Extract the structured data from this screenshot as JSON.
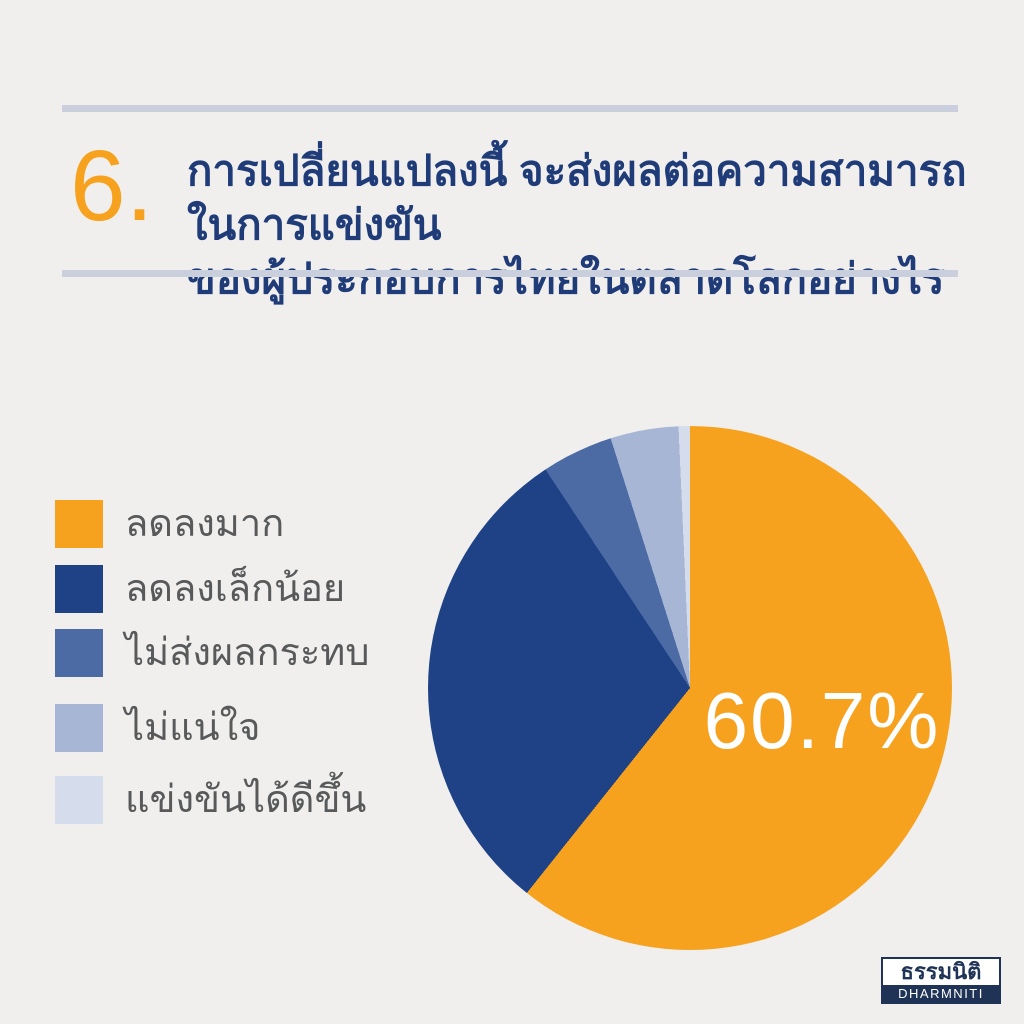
{
  "page": {
    "background_color": "#F0EFED",
    "accent_orange": "#F6A21E",
    "heading_navy": "#1F3C78",
    "divider_color": "#C9CFDC",
    "legend_text_color": "#58595B"
  },
  "header": {
    "number": "6.",
    "question_line1": "การเปลี่ยนแปลงนี้ จะส่งผลต่อความสามารถในการแข่งขัน",
    "question_line2": "ของผู้ประกอบการไทยในตลาดโลกอย่างไร"
  },
  "chart_data": {
    "type": "pie",
    "start_angle_deg": 0,
    "direction": "clockwise",
    "legend_position": "left",
    "data_label": {
      "text": "60.7%",
      "slice": "ลดลงมาก",
      "color": "#FFFFFF"
    },
    "slices": [
      {
        "label": "ลดลงมาก",
        "value": 60.7,
        "color": "#F6A21E"
      },
      {
        "label": "ลดลงเล็กน้อย",
        "value": 30.0,
        "color": "#1F4287"
      },
      {
        "label": "ไม่ส่งผลกระทบ",
        "value": 4.4,
        "color": "#4C6BA4"
      },
      {
        "label": "ไม่แน่ใจ",
        "value": 4.2,
        "color": "#A6B6D4"
      },
      {
        "label": "แข่งขันได้ดีขึ้น",
        "value": 0.7,
        "color": "#D5DCEC"
      }
    ]
  },
  "logo": {
    "thai": "ธรรมนิติ",
    "latin": "DHARMNITI"
  }
}
